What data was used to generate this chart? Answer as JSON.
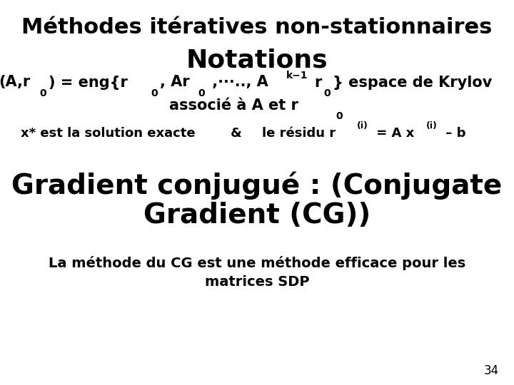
{
  "bg_color": "#ffffff",
  "title1": "Méthodes itératives non-stationnaires",
  "title2": "Notations",
  "title3_line1": "Gradient conjugué : (Conjugate",
  "title3_line2": "Gradient (CG))",
  "line4_line1": "La méthode du CG est une méthode efficace pour les",
  "line4_line2": "matrices SDP",
  "page_num": "34",
  "text_color": "#000000",
  "title1_size": 22,
  "title2_size": 26,
  "title3_size": 28,
  "body_size": 15,
  "small_size": 13,
  "line4_size": 14
}
